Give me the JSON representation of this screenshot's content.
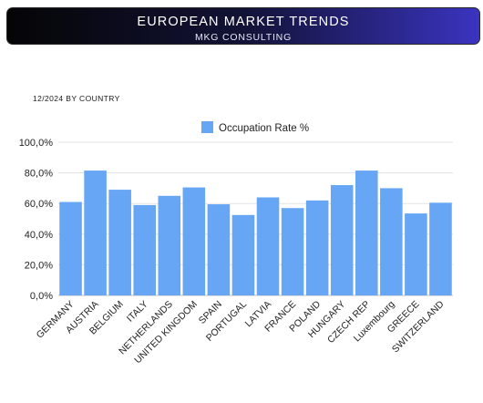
{
  "header": {
    "title": "EUROPEAN MARKET TRENDS",
    "subtitle": "MKG CONSULTING",
    "gradient_colors": [
      "#050506",
      "#121236",
      "#3a34c0"
    ]
  },
  "period_label": "12/2024 BY COUNTRY",
  "chart_data": {
    "type": "bar",
    "title": "",
    "xlabel": "",
    "ylabel": "",
    "categories": [
      "GERMANY",
      "AUSTRIA",
      "BELGIUM",
      "ITALY",
      "NETHERLANDS",
      "UNITED KINGDOM",
      "SPAIN",
      "PORTUGAL",
      "LATVIA",
      "FRANCE",
      "POLAND",
      "HUNGARY",
      "CZECH REP",
      "Luxembourg",
      "GREECE",
      "SWITZERLAND"
    ],
    "series": [
      {
        "name": "Occupation Rate %",
        "color": "#66a6f5",
        "values": [
          61,
          81.5,
          69,
          59,
          65,
          70.5,
          59.5,
          52.5,
          64,
          57,
          62,
          72,
          81.5,
          70,
          53.5,
          60.5
        ]
      }
    ],
    "ylim": [
      0,
      100
    ],
    "yticks": [
      "0,0%",
      "20,0%",
      "40,0%",
      "60,0%",
      "80,0%",
      "100,0%"
    ],
    "grid": true,
    "legend_position": "top-center"
  }
}
